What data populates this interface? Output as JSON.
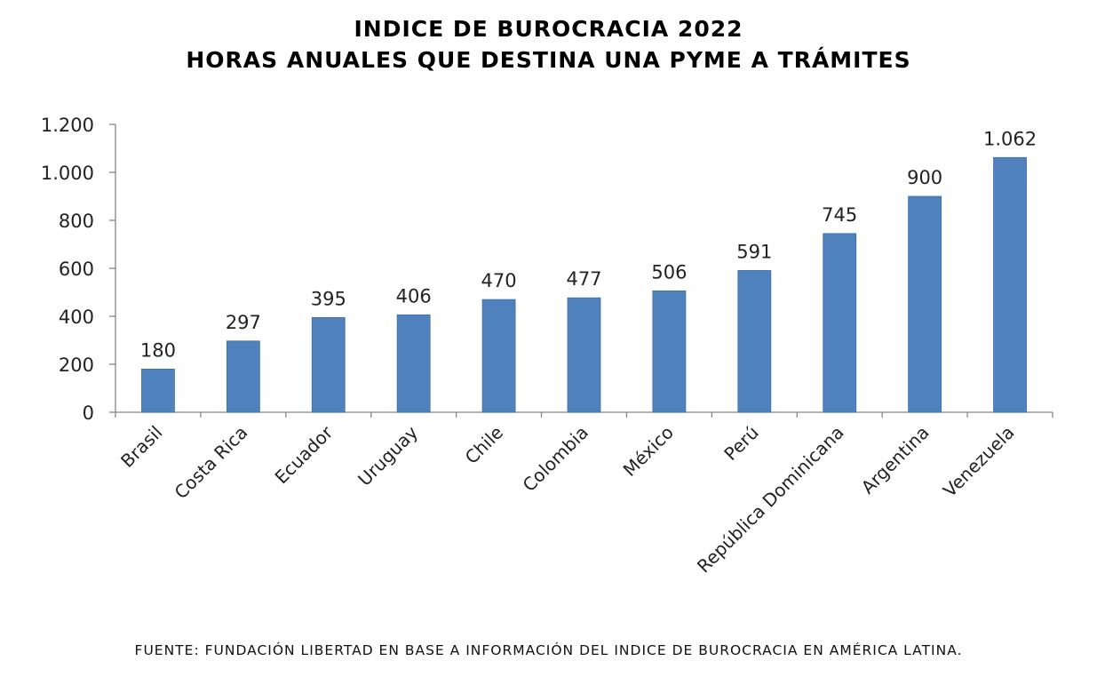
{
  "title_line1": "INDICE DE BUROCRACIA 2022",
  "title_line2": "HORAS ANUALES QUE DESTINA UNA PYME A TRÁMITES",
  "source": "FUENTE: FUNDACIÓN LIBERTAD EN BASE A INFORMACIÓN DEL INDICE DE BUROCRACIA EN AMÉRICA LATINA.",
  "chart_data": {
    "type": "bar",
    "categories": [
      "Brasil",
      "Costa Rica",
      "Ecuador",
      "Uruguay",
      "Chile",
      "Colombia",
      "México",
      "Perú",
      "República Dominicana",
      "Argentina",
      "Venezuela"
    ],
    "values": [
      180,
      297,
      395,
      406,
      470,
      477,
      506,
      591,
      745,
      900,
      1062
    ],
    "value_labels": [
      "180",
      "297",
      "395",
      "406",
      "470",
      "477",
      "506",
      "591",
      "745",
      "900",
      "1.062"
    ],
    "ylim": [
      0,
      1200
    ],
    "yticks": [
      0,
      200,
      400,
      600,
      800,
      1000,
      1200
    ],
    "ytick_labels": [
      "0",
      "200",
      "400",
      "600",
      "800",
      "1.000",
      "1.200"
    ],
    "bar_color": "#4F81BD",
    "grid": false,
    "legend": "none"
  }
}
